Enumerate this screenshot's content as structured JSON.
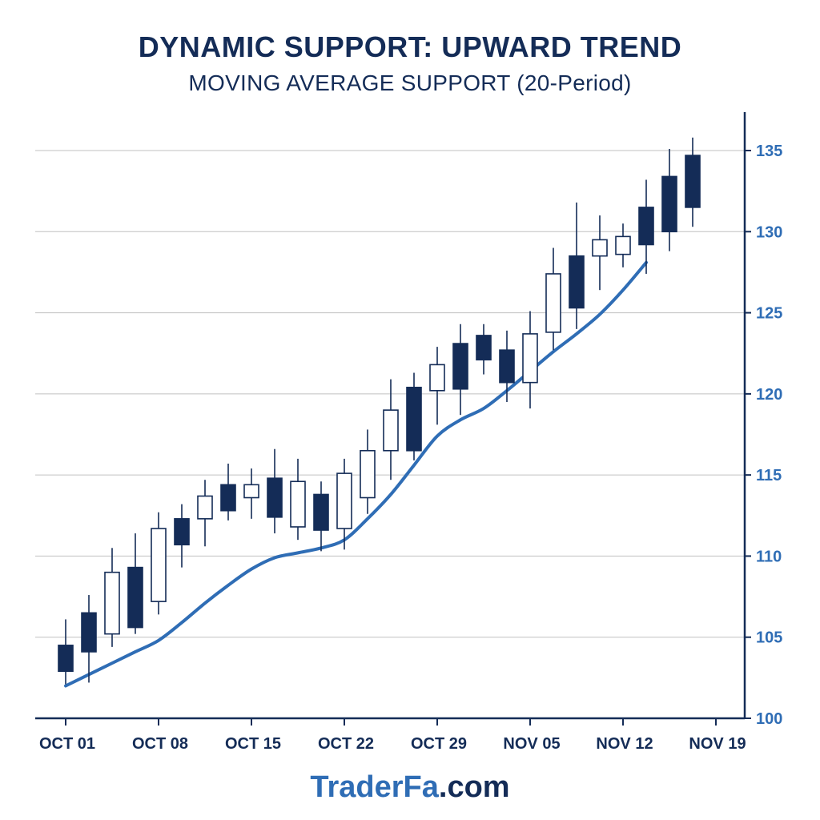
{
  "header": {
    "title": "DYNAMIC SUPPORT: UPWARD TREND",
    "subtitle": "MOVING AVERAGE SUPPORT (20-Period)"
  },
  "footer": {
    "brand": "TraderFa",
    "suffix": ".com"
  },
  "colors": {
    "bearish": "#142c57",
    "bullish": "#ffffff",
    "outline": "#142c57",
    "ma_line": "#2f6db5",
    "grid": "#c0c0c0",
    "axis": "#142c57",
    "y_tick": "#2f6db5",
    "x_tick": "#142c57"
  },
  "chart_data": {
    "type": "candlestick",
    "title": "DYNAMIC SUPPORT: UPWARD TREND",
    "subtitle": "MOVING AVERAGE SUPPORT (20-Period)",
    "grid": true,
    "y_axis_position": "right",
    "ylim": [
      100,
      135
    ],
    "y_ticks": [
      100,
      105,
      110,
      115,
      120,
      125,
      130,
      135
    ],
    "x_ticks": [
      {
        "index": 0,
        "label": "OCT 01"
      },
      {
        "index": 4,
        "label": "OCT 08"
      },
      {
        "index": 8,
        "label": "OCT 15"
      },
      {
        "index": 12,
        "label": "OCT 22"
      },
      {
        "index": 16,
        "label": "OCT 29"
      },
      {
        "index": 20,
        "label": "NOV 05"
      },
      {
        "index": 24,
        "label": "NOV 12"
      },
      {
        "index": 28,
        "label": "NOV 19"
      }
    ],
    "candles": [
      {
        "open": 104.5,
        "close": 102.9,
        "high": 106.1,
        "low": 102.1
      },
      {
        "open": 106.5,
        "close": 104.1,
        "high": 107.6,
        "low": 102.2
      },
      {
        "open": 105.2,
        "close": 109.0,
        "high": 110.5,
        "low": 104.4
      },
      {
        "open": 109.3,
        "close": 105.6,
        "high": 111.4,
        "low": 105.2
      },
      {
        "open": 107.2,
        "close": 111.7,
        "high": 112.7,
        "low": 106.4
      },
      {
        "open": 112.3,
        "close": 110.7,
        "high": 113.2,
        "low": 109.3
      },
      {
        "open": 112.3,
        "close": 113.7,
        "high": 114.7,
        "low": 110.6
      },
      {
        "open": 114.4,
        "close": 112.8,
        "high": 115.7,
        "low": 112.2
      },
      {
        "open": 113.6,
        "close": 114.4,
        "high": 115.4,
        "low": 112.3
      },
      {
        "open": 114.8,
        "close": 112.4,
        "high": 116.6,
        "low": 111.4
      },
      {
        "open": 111.8,
        "close": 114.6,
        "high": 116.0,
        "low": 111.0
      },
      {
        "open": 113.8,
        "close": 111.6,
        "high": 114.6,
        "low": 110.3
      },
      {
        "open": 111.7,
        "close": 115.1,
        "high": 116.0,
        "low": 110.4
      },
      {
        "open": 113.6,
        "close": 116.5,
        "high": 117.8,
        "low": 112.6
      },
      {
        "open": 116.5,
        "close": 119.0,
        "high": 120.9,
        "low": 114.7
      },
      {
        "open": 120.4,
        "close": 116.5,
        "high": 121.3,
        "low": 115.9
      },
      {
        "open": 120.2,
        "close": 121.8,
        "high": 122.9,
        "low": 118.1
      },
      {
        "open": 123.1,
        "close": 120.3,
        "high": 124.3,
        "low": 118.7
      },
      {
        "open": 123.6,
        "close": 122.1,
        "high": 124.3,
        "low": 121.2
      },
      {
        "open": 122.7,
        "close": 120.7,
        "high": 123.9,
        "low": 119.5
      },
      {
        "open": 120.7,
        "close": 123.7,
        "high": 125.1,
        "low": 119.1
      },
      {
        "open": 123.8,
        "close": 127.4,
        "high": 129.0,
        "low": 122.7
      },
      {
        "open": 128.5,
        "close": 125.3,
        "high": 131.8,
        "low": 124.0
      },
      {
        "open": 128.5,
        "close": 129.5,
        "high": 131.0,
        "low": 126.4
      },
      {
        "open": 128.6,
        "close": 129.7,
        "high": 130.5,
        "low": 127.8
      },
      {
        "open": 131.5,
        "close": 129.2,
        "high": 133.2,
        "low": 127.4
      },
      {
        "open": 133.4,
        "close": 130.0,
        "high": 135.1,
        "low": 128.8
      },
      {
        "open": 134.7,
        "close": 131.5,
        "high": 135.8,
        "low": 130.3
      }
    ],
    "moving_average": [
      {
        "x": 0.0,
        "y": 102.0
      },
      {
        "x": 1.0,
        "y": 102.7
      },
      {
        "x": 2.0,
        "y": 103.4
      },
      {
        "x": 3.0,
        "y": 104.1
      },
      {
        "x": 4.0,
        "y": 104.8
      },
      {
        "x": 5.0,
        "y": 105.9
      },
      {
        "x": 6.0,
        "y": 107.1
      },
      {
        "x": 7.0,
        "y": 108.2
      },
      {
        "x": 8.0,
        "y": 109.2
      },
      {
        "x": 9.0,
        "y": 109.9
      },
      {
        "x": 10.0,
        "y": 110.2
      },
      {
        "x": 11.0,
        "y": 110.5
      },
      {
        "x": 12.0,
        "y": 111.0
      },
      {
        "x": 13.0,
        "y": 112.3
      },
      {
        "x": 14.0,
        "y": 113.8
      },
      {
        "x": 15.0,
        "y": 115.6
      },
      {
        "x": 16.0,
        "y": 117.4
      },
      {
        "x": 17.0,
        "y": 118.4
      },
      {
        "x": 18.0,
        "y": 119.1
      },
      {
        "x": 19.0,
        "y": 120.2
      },
      {
        "x": 20.0,
        "y": 121.4
      },
      {
        "x": 21.0,
        "y": 122.6
      },
      {
        "x": 22.0,
        "y": 123.7
      },
      {
        "x": 23.0,
        "y": 124.9
      },
      {
        "x": 24.0,
        "y": 126.4
      },
      {
        "x": 25.0,
        "y": 128.1
      }
    ]
  }
}
